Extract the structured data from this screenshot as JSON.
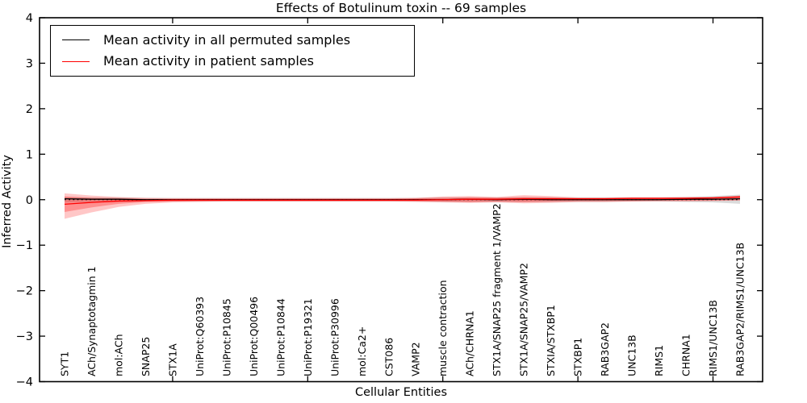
{
  "chart_data": {
    "type": "line",
    "title": "Effects of Botulinum toxin -- 69 samples",
    "xlabel": "Cellular Entities",
    "ylabel": "Inferred Activity",
    "ylim": [
      -4,
      4
    ],
    "yticks": [
      4,
      3,
      2,
      1,
      0,
      -1,
      -2,
      -3,
      -4
    ],
    "xtick_positions": [
      5,
      10,
      15,
      20,
      25
    ],
    "grid": false,
    "legend_position": "upper left",
    "zero_line": {
      "style": "dotted",
      "color": "#000000"
    },
    "categories": [
      "SYT1",
      "ACh/Synaptotagmin 1",
      "mol:ACh",
      "SNAP25",
      "STX1A",
      "UniProt:Q60393",
      "UniProt:P10845",
      "UniProt:Q00496",
      "UniProt:P10844",
      "UniProt:P19321",
      "UniProt:P30996",
      "mol:Ca2+",
      "CST086",
      "VAMP2",
      "muscle contraction",
      "ACh/CHRNA1",
      "STX1A/SNAP25 fragment 1/VAMP2",
      "STX1A/SNAP25/VAMP2",
      "STXIA/STXBP1",
      "STXBP1",
      "RAB3GAP2",
      "UNC13B",
      "RIMS1",
      "CHRNA1",
      "RIMS1/UNC13B",
      "RAB3GAP2/RIMS1/UNC13B"
    ],
    "series": [
      {
        "name": "Mean activity in all permuted samples",
        "color": "#000000",
        "values": [
          0.02,
          0.01,
          0.01,
          0,
          0,
          0,
          0,
          0,
          0,
          0,
          0,
          0,
          0,
          0,
          0,
          0.01,
          0,
          0.01,
          0,
          0,
          0,
          0,
          0,
          0.01,
          0.01,
          0.02
        ]
      },
      {
        "name": "Mean activity in patient samples",
        "color": "#ff0000",
        "values": [
          -0.1,
          -0.06,
          -0.03,
          -0.02,
          -0.01,
          -0.01,
          -0.01,
          -0.01,
          -0.01,
          -0.01,
          -0.01,
          -0.01,
          -0.01,
          -0.01,
          0,
          0.01,
          0.01,
          0.02,
          0.02,
          0.02,
          0.02,
          0.03,
          0.03,
          0.03,
          0.04,
          0.06
        ]
      }
    ],
    "bands": [
      {
        "name": "permuted-samples-band",
        "color": "#999999",
        "opacity": 0.35,
        "hi": [
          0.06,
          0.05,
          0.05,
          0.04,
          0.04,
          0.04,
          0.04,
          0.04,
          0.04,
          0.04,
          0.04,
          0.04,
          0.04,
          0.04,
          0.05,
          0.05,
          0.05,
          0.05,
          0.05,
          0.05,
          0.05,
          0.05,
          0.05,
          0.06,
          0.08,
          0.11
        ],
        "lo": [
          -0.06,
          -0.05,
          -0.05,
          -0.04,
          -0.04,
          -0.04,
          -0.04,
          -0.04,
          -0.04,
          -0.04,
          -0.04,
          -0.04,
          -0.04,
          -0.04,
          -0.05,
          -0.05,
          -0.05,
          -0.05,
          -0.05,
          -0.05,
          -0.05,
          -0.04,
          -0.04,
          -0.05,
          -0.06,
          -0.09
        ]
      },
      {
        "name": "patient-samples-band-outer",
        "color": "#ff0000",
        "opacity": 0.22,
        "hi": [
          0.14,
          0.09,
          0.06,
          0.04,
          0.03,
          0.03,
          0.03,
          0.03,
          0.03,
          0.03,
          0.03,
          0.03,
          0.03,
          0.04,
          0.07,
          0.08,
          0.06,
          0.1,
          0.08,
          0.05,
          0.05,
          0.05,
          0.05,
          0.06,
          0.06,
          0.09
        ],
        "lo": [
          -0.42,
          -0.28,
          -0.16,
          -0.09,
          -0.06,
          -0.05,
          -0.04,
          -0.04,
          -0.04,
          -0.04,
          -0.04,
          -0.04,
          -0.04,
          -0.05,
          -0.06,
          -0.07,
          -0.06,
          -0.08,
          -0.07,
          -0.05,
          -0.05,
          -0.04,
          -0.04,
          -0.04,
          -0.03,
          -0.02
        ]
      },
      {
        "name": "patient-samples-band-inner",
        "color": "#ff0000",
        "opacity": 0.28,
        "hi": [
          0.07,
          0.04,
          0.03,
          0.02,
          0.02,
          0.02,
          0.02,
          0.02,
          0.02,
          0.02,
          0.02,
          0.02,
          0.02,
          0.03,
          0.04,
          0.05,
          0.04,
          0.06,
          0.05,
          0.03,
          0.03,
          0.03,
          0.03,
          0.04,
          0.04,
          0.08
        ],
        "lo": [
          -0.27,
          -0.17,
          -0.09,
          -0.05,
          -0.04,
          -0.03,
          -0.03,
          -0.03,
          -0.03,
          -0.03,
          -0.03,
          -0.03,
          -0.03,
          -0.03,
          -0.04,
          -0.05,
          -0.04,
          -0.05,
          -0.04,
          -0.03,
          -0.03,
          -0.03,
          -0.02,
          -0.02,
          -0.02,
          -0.01
        ]
      }
    ],
    "legend": [
      {
        "label": "Mean activity in all permuted samples",
        "color": "#000000"
      },
      {
        "label": "Mean activity in patient samples",
        "color": "#ff0000"
      }
    ]
  }
}
